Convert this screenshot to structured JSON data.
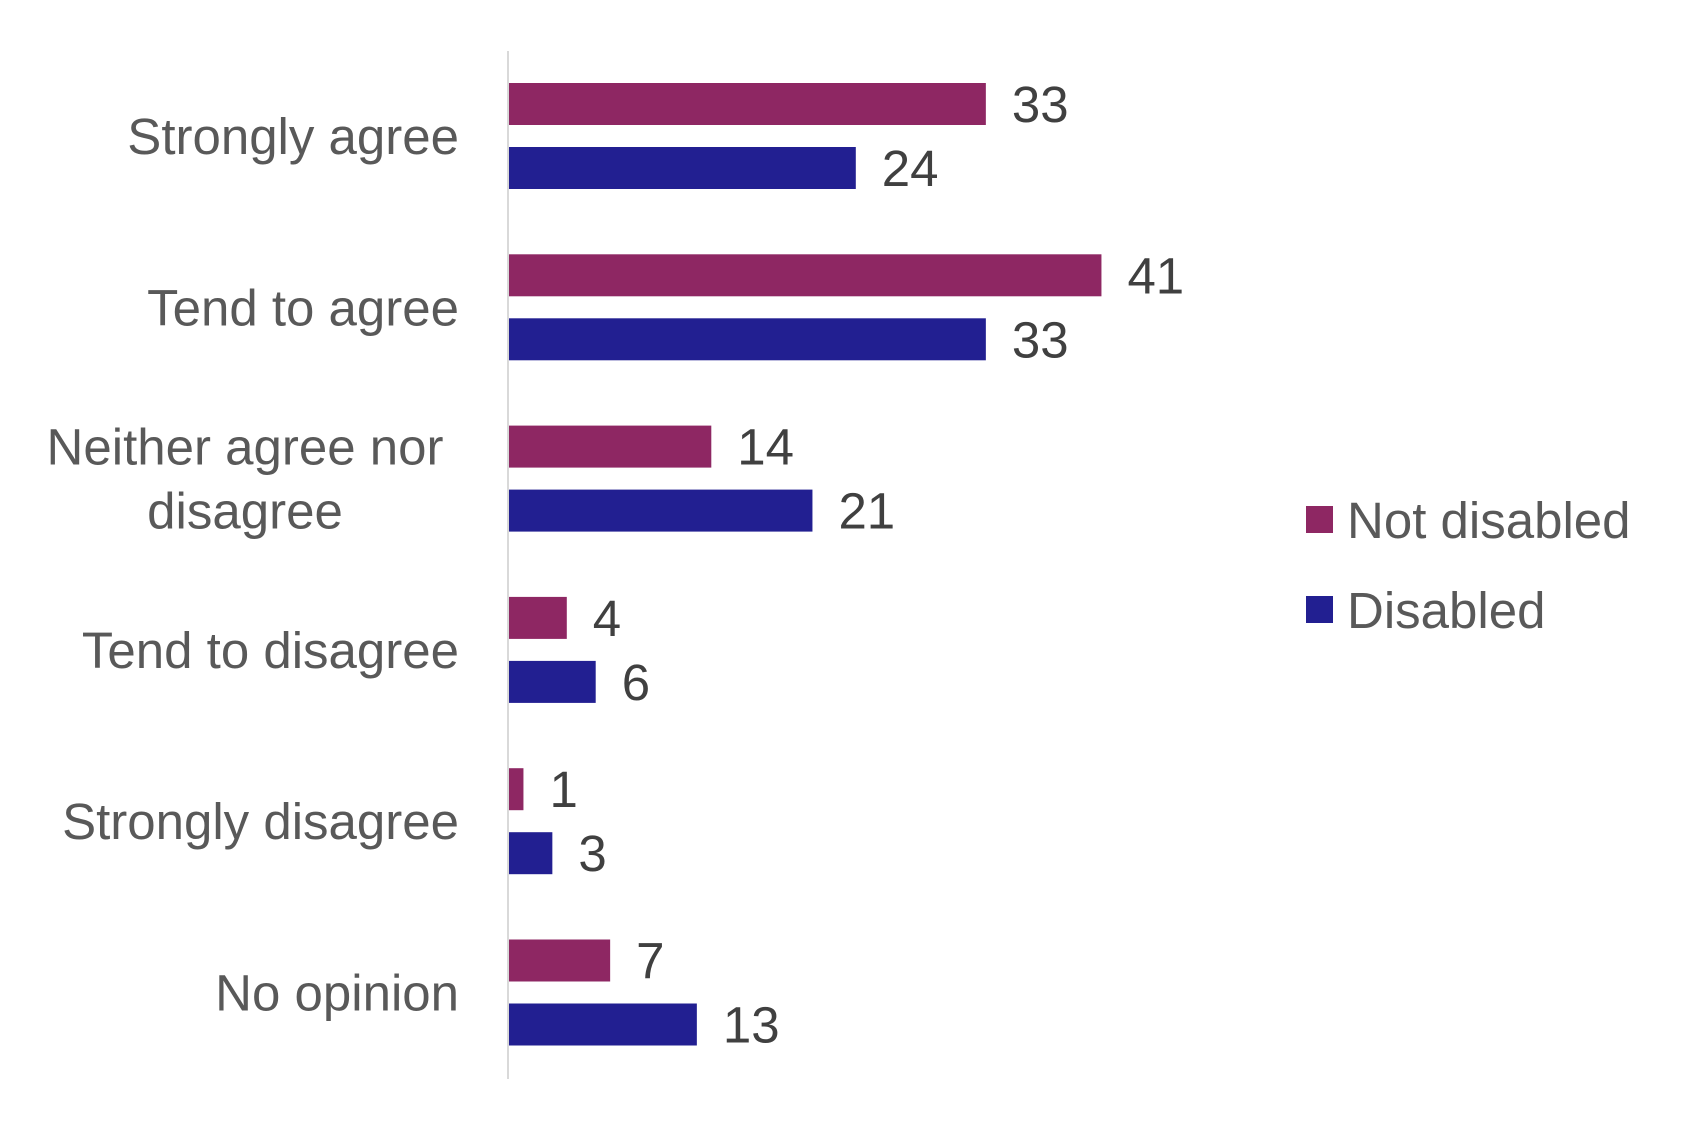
{
  "chart_data": {
    "type": "bar",
    "orientation": "horizontal",
    "categories": [
      "Strongly agree",
      "Tend to agree",
      "Neither agree nor disagree",
      "Tend to disagree",
      "Strongly disagree",
      "No opinion"
    ],
    "category_lines": [
      [
        "Strongly agree"
      ],
      [
        "Tend to agree"
      ],
      [
        "Neither agree nor",
        "disagree"
      ],
      [
        "Tend to disagree"
      ],
      [
        "Strongly disagree"
      ],
      [
        "No opinion"
      ]
    ],
    "series": [
      {
        "name": "Not disabled",
        "color": "#8E2763",
        "values": [
          33,
          41,
          14,
          4,
          1,
          7
        ]
      },
      {
        "name": "Disabled",
        "color": "#221F91",
        "values": [
          24,
          33,
          21,
          6,
          3,
          13
        ]
      }
    ],
    "xlim": [
      0,
      41
    ],
    "data_labels": true,
    "grid": false,
    "legend": "right"
  }
}
